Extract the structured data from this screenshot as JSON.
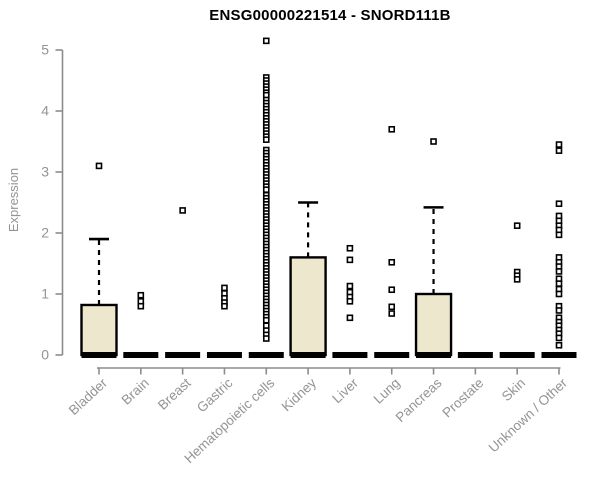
{
  "chart_data": {
    "type": "boxplot",
    "title": "ENSG00000221514 - SNORD111B",
    "ylabel": "Expression",
    "ylim": [
      0,
      5
    ],
    "yticks": [
      "0",
      "1",
      "2",
      "3",
      "4",
      "5"
    ],
    "grid": false,
    "legend_position": "none",
    "colors": {
      "box_fill": "#EDE8CD",
      "box_border": "#000000",
      "median": "#000000",
      "outlier_fill": "#ffffff",
      "axis": "#8C8C8C",
      "tick_text": "#949494",
      "title_text": "#000000"
    },
    "categories": [
      "Bladder",
      "Brain",
      "Breast",
      "Gastric",
      "Hematopoietic cells",
      "Kidney",
      "Liver",
      "Lung",
      "Pancreas",
      "Prostate",
      "Skin",
      "Unknown / Other"
    ],
    "boxes": [
      {
        "q1": 0,
        "median": 0,
        "q3": 0.82,
        "whisker_low": 0,
        "whisker_high": 1.9,
        "outliers": [
          3.1
        ]
      },
      {
        "q1": 0,
        "median": 0,
        "q3": 0,
        "whisker_low": 0,
        "whisker_high": 0,
        "outliers": [
          0.98,
          0.88,
          0.8
        ]
      },
      {
        "q1": 0,
        "median": 0,
        "q3": 0,
        "whisker_low": 0,
        "whisker_high": 0,
        "outliers": [
          2.37
        ]
      },
      {
        "q1": 0,
        "median": 0,
        "q3": 0,
        "whisker_low": 0,
        "whisker_high": 0,
        "outliers": [
          1.1,
          1.01,
          0.93,
          0.86,
          0.8
        ]
      },
      {
        "q1": 0,
        "median": 0,
        "q3": 0,
        "whisker_low": 0,
        "whisker_high": 0,
        "outliers": [
          5.15,
          4.55,
          4.5,
          4.45,
          4.4,
          4.35,
          4.3,
          4.26,
          4.18,
          4.13,
          4.08,
          4.03,
          3.98,
          3.93,
          3.88,
          3.83,
          3.78,
          3.73,
          3.68,
          3.63,
          3.58,
          3.53,
          3.36,
          3.31,
          3.26,
          3.21,
          3.16,
          3.11,
          3.06,
          3.01,
          2.96,
          2.91,
          2.86,
          2.81,
          2.76,
          2.71,
          2.62,
          2.57,
          2.52,
          2.47,
          2.42,
          2.37,
          2.32,
          2.27,
          2.22,
          2.17,
          2.12,
          2.07,
          2.02,
          1.97,
          1.92,
          1.87,
          1.82,
          1.77,
          1.72,
          1.67,
          1.62,
          1.57,
          1.52,
          1.47,
          1.42,
          1.37,
          1.32,
          1.27,
          1.22,
          1.17,
          1.12,
          1.07,
          1.02,
          0.97,
          0.92,
          0.87,
          0.82,
          0.77,
          0.72,
          0.67,
          0.62,
          0.57,
          0.48,
          0.4,
          0.33,
          0.27
        ]
      },
      {
        "q1": 0,
        "median": 0,
        "q3": 1.6,
        "whisker_low": 0,
        "whisker_high": 2.5,
        "outliers": []
      },
      {
        "q1": 0,
        "median": 0,
        "q3": 0,
        "whisker_low": 0,
        "whisker_high": 0,
        "outliers": [
          1.75,
          1.56,
          1.13,
          1.03,
          0.95,
          0.88,
          0.61
        ]
      },
      {
        "q1": 0,
        "median": 0,
        "q3": 0,
        "whisker_low": 0,
        "whisker_high": 0,
        "outliers": [
          3.7,
          1.52,
          1.07,
          0.79,
          0.68
        ]
      },
      {
        "q1": 0,
        "median": 0,
        "q3": 1.0,
        "whisker_low": 0,
        "whisker_high": 2.42,
        "outliers": [
          3.5
        ]
      },
      {
        "q1": 0,
        "median": 0,
        "q3": 0,
        "whisker_low": 0,
        "whisker_high": 0,
        "outliers": []
      },
      {
        "q1": 0,
        "median": 0,
        "q3": 0,
        "whisker_low": 0,
        "whisker_high": 0,
        "outliers": [
          2.12,
          1.36,
          1.3,
          1.24
        ]
      },
      {
        "q1": 0,
        "median": 0,
        "q3": 0,
        "whisker_low": 0,
        "whisker_high": 0,
        "outliers": [
          3.45,
          3.35,
          2.48,
          2.28,
          2.2,
          2.12,
          2.05,
          1.97,
          1.6,
          1.52,
          1.45,
          1.37,
          1.25,
          1.17,
          1.08,
          1.0,
          0.8,
          0.73,
          0.61,
          0.54,
          0.48,
          0.41,
          0.35,
          0.28,
          0.16
        ]
      }
    ]
  }
}
